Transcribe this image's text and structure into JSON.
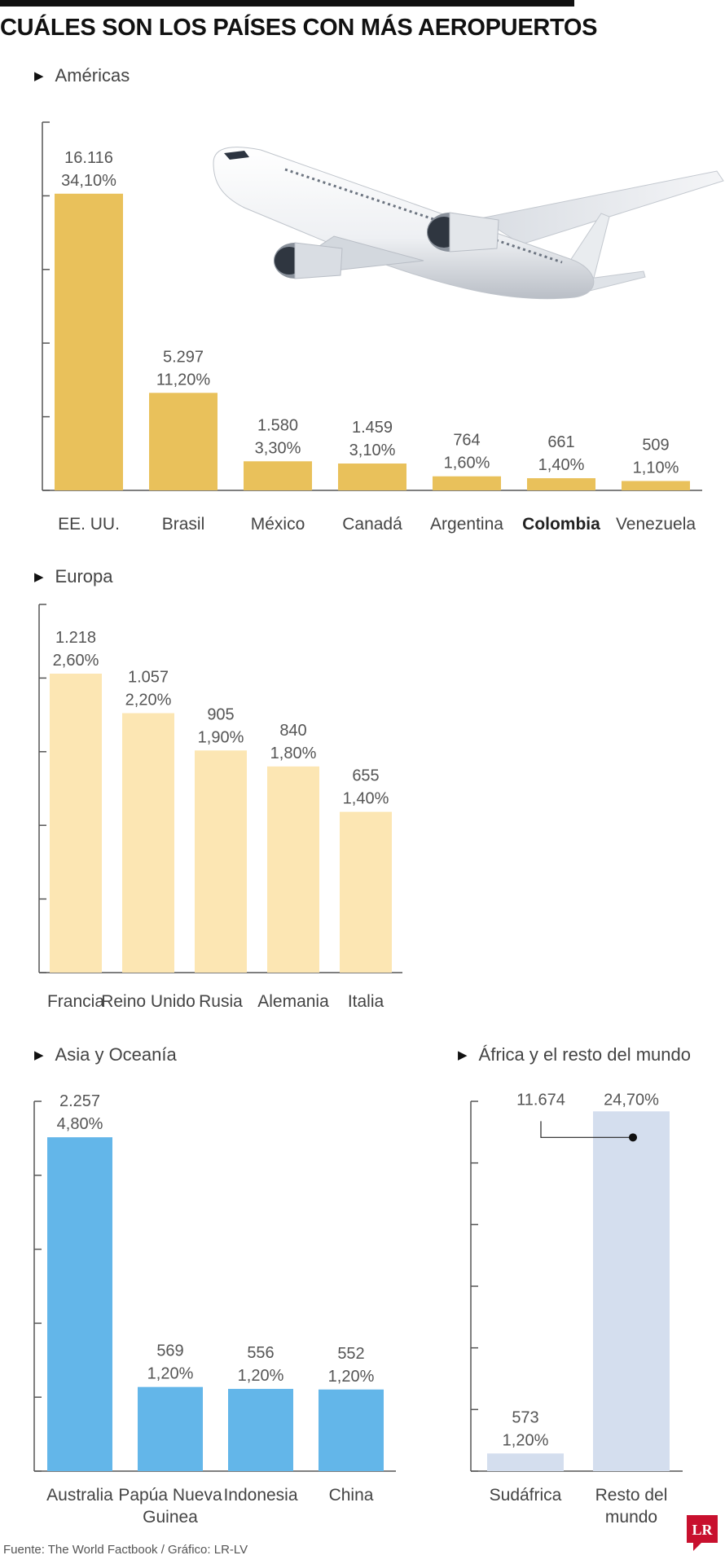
{
  "title": "CUÁLES SON LOS PAÍSES CON MÁS AEROPUERTOS",
  "footer": "Fuente: The World Factbook / Gráfico: LR-LV",
  "logo_text": "LR",
  "colors": {
    "americas": "#E9C15B",
    "europa": "#FCE6B3",
    "asia": "#63B6E9",
    "africa": "#D4DEEE",
    "axis": "#555555",
    "text": "#444444"
  },
  "chart_data": [
    {
      "type": "bar",
      "title": "Américas",
      "categories": [
        "EE. UU.",
        "Brasil",
        "México",
        "Canadá",
        "Argentina",
        "Colombia",
        "Venezuela"
      ],
      "values": [
        16116,
        5297,
        1580,
        1459,
        764,
        661,
        509
      ],
      "value_labels": [
        "16.116",
        "5.297",
        "1.580",
        "1.459",
        "764",
        "661",
        "509"
      ],
      "percent_labels": [
        "34,10%",
        "11,20%",
        "3,30%",
        "3,10%",
        "1,60%",
        "1,40%",
        "1,10%"
      ],
      "highlight": "Colombia",
      "ylim": [
        0,
        20000
      ]
    },
    {
      "type": "bar",
      "title": "Europa",
      "categories": [
        "Francia",
        "Reino Unido",
        "Rusia",
        "Alemania",
        "Italia"
      ],
      "values": [
        1218,
        1057,
        905,
        840,
        655
      ],
      "value_labels": [
        "1.218",
        "1.057",
        "905",
        "840",
        "655"
      ],
      "percent_labels": [
        "2,60%",
        "2,20%",
        "1,90%",
        "1,80%",
        "1,40%"
      ],
      "ylim": [
        0,
        1500
      ]
    },
    {
      "type": "bar",
      "title": "Asia y Oceanía",
      "categories": [
        "Australia",
        "Papúa Nueva Guinea",
        "Indonesia",
        "China"
      ],
      "values": [
        2257,
        569,
        556,
        552
      ],
      "value_labels": [
        "2.257",
        "569",
        "556",
        "552"
      ],
      "percent_labels": [
        "4,80%",
        "1,20%",
        "1,20%",
        "1,20%"
      ],
      "ylim": [
        0,
        2500
      ]
    },
    {
      "type": "bar",
      "title": "África y el resto del mundo",
      "categories": [
        "Sudáfrica",
        "Resto del mundo"
      ],
      "values": [
        573,
        11674
      ],
      "value_labels": [
        "573",
        "11.674"
      ],
      "percent_labels": [
        "1,20%",
        "24,70%"
      ],
      "ylim": [
        0,
        12000
      ]
    }
  ]
}
